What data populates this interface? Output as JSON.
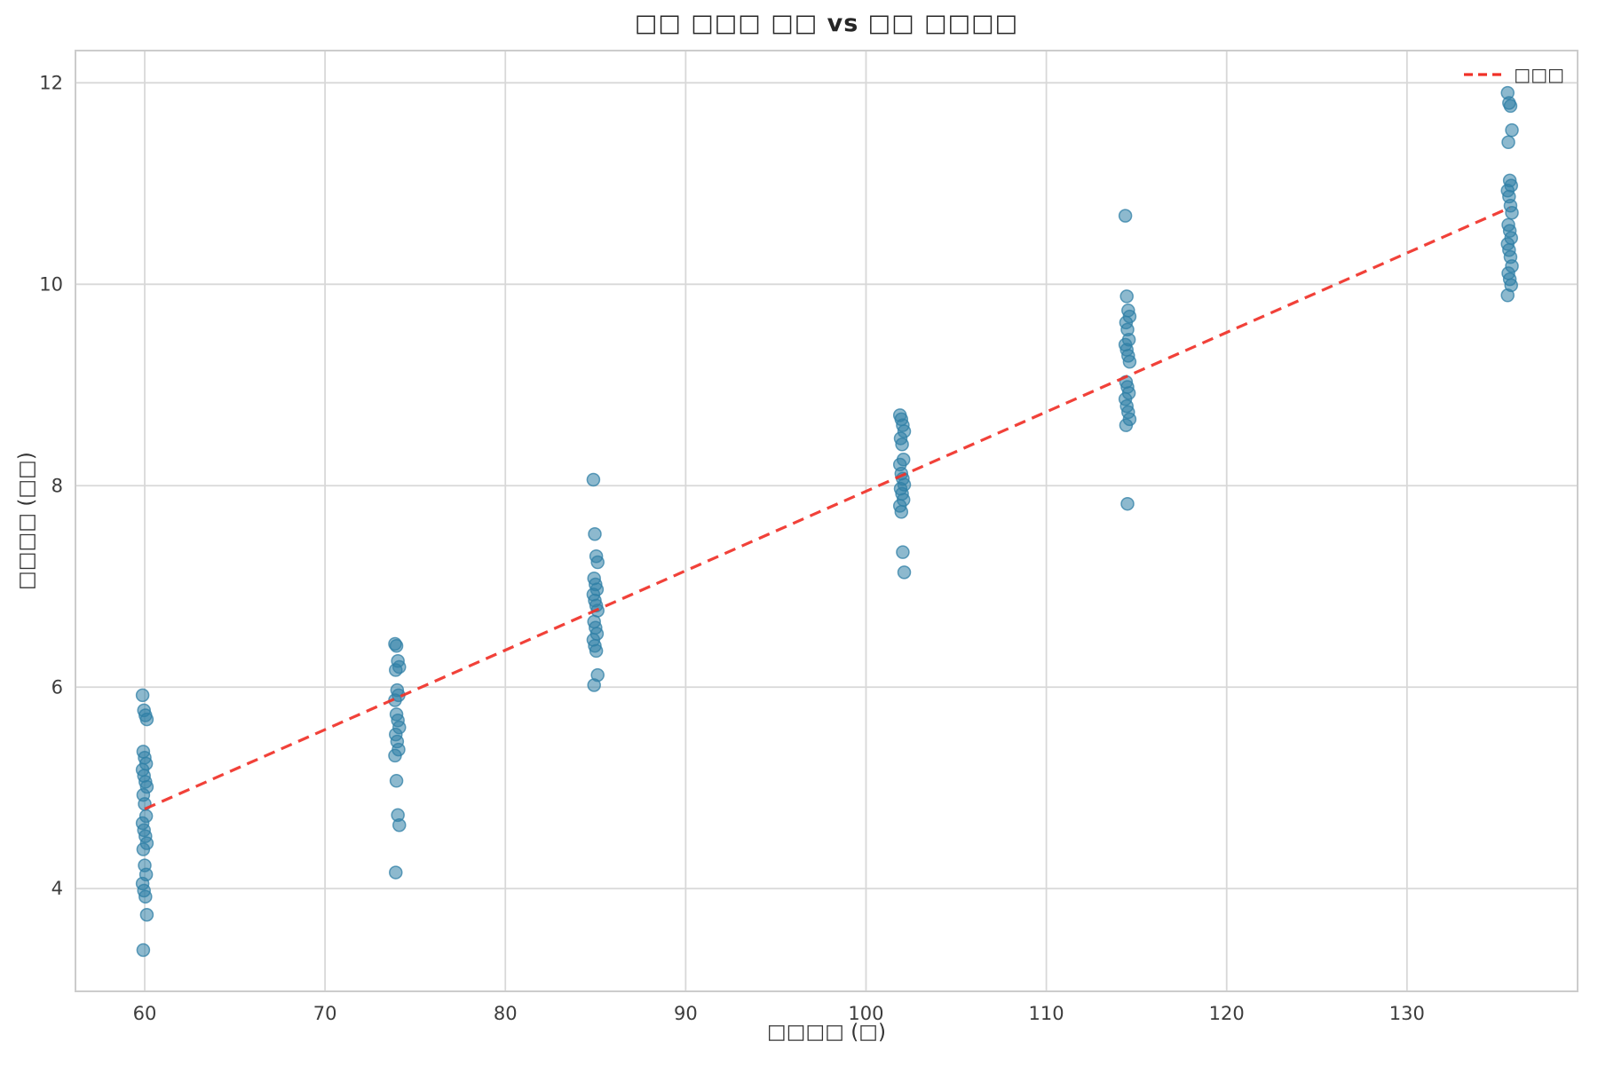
{
  "title": "□□ □□□ □□ vs □□ □□□□",
  "axes": {
    "xlabel": "□□□□ (□)",
    "ylabel": "□□□□ (□□)"
  },
  "legend": {
    "items": [
      {
        "label": "□□□",
        "marker": "red-dashed-line"
      }
    ]
  },
  "colors": {
    "point_fill": "#2f7fa6",
    "point_edge": "#2f7fa6",
    "trendline": "#f03128",
    "grid": "#d8d8d8",
    "frame": "#cccccc",
    "tick_text": "#3d3d3d",
    "title_text": "#262626"
  },
  "chart_data": {
    "type": "scatter",
    "title": "□□ □□□ □□ vs □□ □□□□",
    "xlabel": "□□□□ (□)",
    "ylabel": "□□□□ (□□)",
    "xlim": [
      56.16,
      139.46
    ],
    "ylim": [
      2.98,
      12.32
    ],
    "x_ticks": [
      60,
      70,
      80,
      90,
      100,
      110,
      120,
      130
    ],
    "y_ticks": [
      4,
      6,
      8,
      10,
      12
    ],
    "grid": true,
    "legend_position": "upper-right",
    "series": [
      {
        "name": "data-points",
        "type": "scatter",
        "groups": [
          {
            "x": 60,
            "y": [
              5.92,
              5.77,
              5.72,
              5.68,
              5.36,
              5.3,
              5.24,
              5.18,
              5.12,
              5.06,
              5.01,
              4.93,
              4.84,
              4.72,
              4.65,
              4.58,
              4.52,
              4.45,
              4.39,
              4.23,
              4.14,
              4.05,
              3.98,
              3.92,
              3.74,
              3.39
            ]
          },
          {
            "x": 74,
            "y": [
              6.43,
              6.41,
              6.26,
              6.2,
              6.17,
              5.97,
              5.92,
              5.87,
              5.73,
              5.67,
              5.6,
              5.53,
              5.46,
              5.38,
              5.32,
              5.07,
              4.73,
              4.63,
              4.16
            ]
          },
          {
            "x": 85,
            "y": [
              8.06,
              7.52,
              7.3,
              7.24,
              7.08,
              7.02,
              6.97,
              6.92,
              6.86,
              6.81,
              6.76,
              6.65,
              6.59,
              6.53,
              6.47,
              6.41,
              6.36,
              6.12,
              6.02
            ]
          },
          {
            "x": 102,
            "y": [
              8.7,
              8.66,
              8.6,
              8.54,
              8.47,
              8.41,
              8.26,
              8.21,
              8.12,
              8.07,
              8.01,
              7.97,
              7.92,
              7.86,
              7.8,
              7.74,
              7.34,
              7.14
            ]
          },
          {
            "x": 114.5,
            "y": [
              10.68,
              9.88,
              9.74,
              9.68,
              9.62,
              9.55,
              9.45,
              9.4,
              9.35,
              9.29,
              9.23,
              9.03,
              8.98,
              8.92,
              8.86,
              8.79,
              8.73,
              8.66,
              8.6,
              7.82
            ]
          },
          {
            "x": 135.7,
            "y": [
              11.9,
              11.8,
              11.77,
              11.53,
              11.41,
              11.03,
              10.98,
              10.93,
              10.87,
              10.78,
              10.71,
              10.59,
              10.53,
              10.46,
              10.4,
              10.34,
              10.27,
              10.18,
              10.11,
              10.05,
              9.99,
              9.89
            ]
          }
        ]
      },
      {
        "name": "trendline",
        "type": "line",
        "style": "dashed",
        "label": "□□□",
        "points": [
          [
            60,
            4.79
          ],
          [
            135.7,
            10.76
          ]
        ]
      }
    ]
  }
}
